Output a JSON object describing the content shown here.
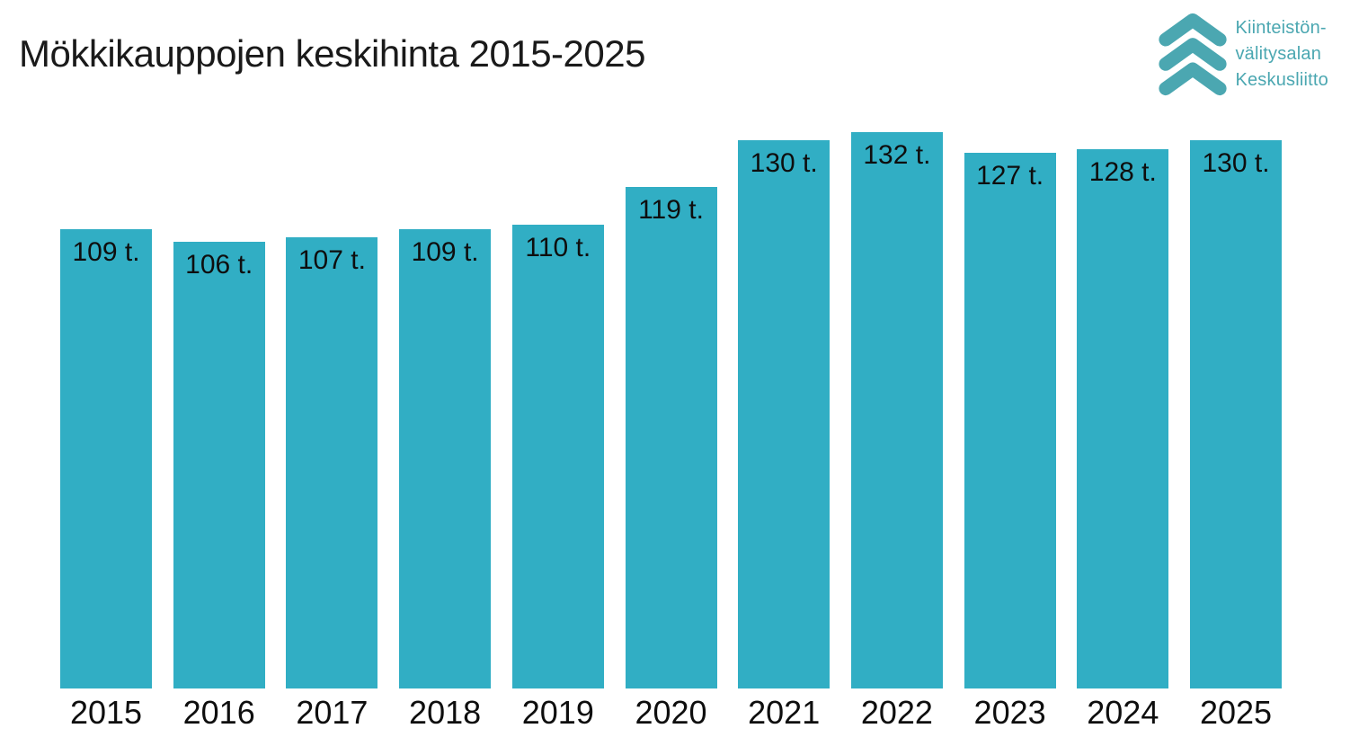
{
  "title": "Mökkikauppojen keskihinta 2015-2025",
  "logo": {
    "icon": "triple-chevron-up-icon",
    "color": "#4BA7B1",
    "lines": [
      "Kiinteistön-",
      "välitysalan",
      "Keskusliitto"
    ]
  },
  "colors": {
    "background": "#FFFFFF",
    "bar": "#31AEC4",
    "text": "#0E0E0E"
  },
  "chart_data": {
    "type": "bar",
    "title": "Mökkikauppojen keskihinta 2015-2025",
    "categories": [
      "2015",
      "2016",
      "2017",
      "2018",
      "2019",
      "2020",
      "2021",
      "2022",
      "2023",
      "2024",
      "2025"
    ],
    "values": [
      109,
      106,
      107,
      109,
      110,
      119,
      130,
      132,
      127,
      128,
      130
    ],
    "bar_labels": [
      "109 t.",
      "106 t.",
      "107 t.",
      "109 t.",
      "110 t.",
      "119 t.",
      "130 t.",
      "132 t.",
      "127 t.",
      "128 t.",
      "130 t."
    ],
    "unit": "t.",
    "xlabel": "",
    "ylabel": "",
    "ylim": [
      0,
      132
    ],
    "grid": false,
    "legend": "none",
    "bar_color": "#31AEC4",
    "label_position": "inside-top"
  }
}
